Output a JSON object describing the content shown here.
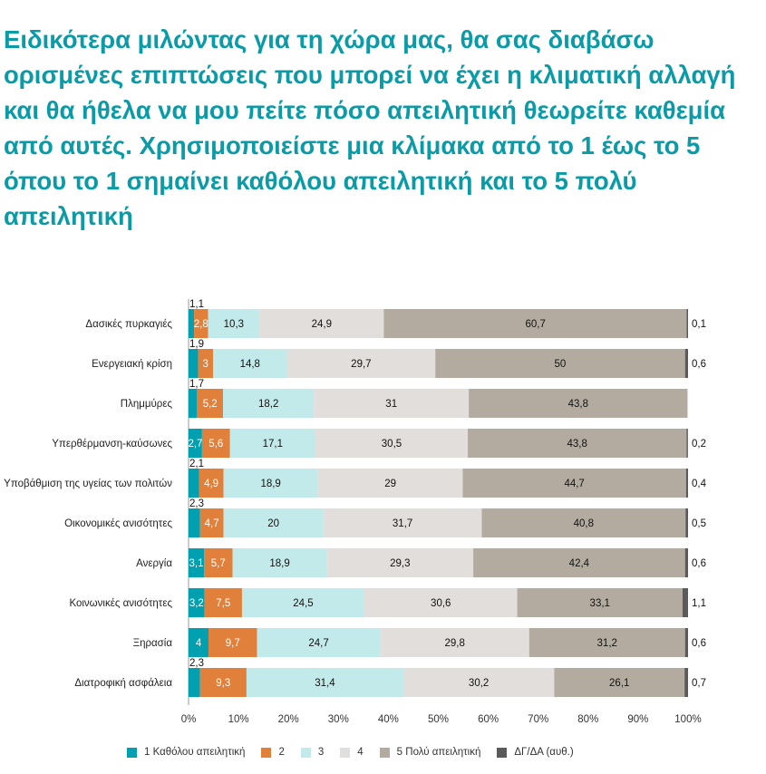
{
  "title": "Ειδικότερα μιλώντας για τη χώρα μας, θα σας διαβάσω ορισμένες επιπτώσεις που μπορεί να έχει η κλιματική αλλαγή και θα ήθελα να μου πείτε πόσο απειλητική θεωρείτε καθεμία από αυτές. Χρησιμοποιείστε μια κλίμακα από το 1 έως το 5 όπου το 1 σημαίνει καθόλου απειλητική και το 5 πολύ απειλητική",
  "chart_data": {
    "type": "bar",
    "orientation": "horizontal",
    "stacked": true,
    "xlim": [
      0,
      100
    ],
    "xticks": [
      "0%",
      "10%",
      "20%",
      "30%",
      "40%",
      "50%",
      "60%",
      "70%",
      "80%",
      "90%",
      "100%"
    ],
    "legend_position": "bottom",
    "categories": [
      "Δασικές πυρκαγιές",
      "Ενεργειακή κρίση",
      "Πλημμύρες",
      "Υπερθέρμανση-καύσωνες",
      "Υποβάθμιση της υγείας των πολιτών",
      "Οικονομικές ανισότητες",
      "Ανεργία",
      "Κοινωνικές ανισότητες",
      "Ξηρασία",
      "Διατροφική ασφάλεια"
    ],
    "series": [
      {
        "name": "1 Καθόλου απειλητική",
        "color": "#00a0b0",
        "label_color": "#ffffff",
        "values": [
          1.1,
          1.9,
          1.7,
          2.7,
          2.1,
          2.3,
          3.1,
          3.2,
          4,
          2.3
        ]
      },
      {
        "name": "2",
        "color": "#e0803a",
        "label_color": "#ffffff",
        "values": [
          2.8,
          3,
          5.2,
          5.6,
          4.9,
          4.7,
          5.7,
          7.5,
          9.7,
          9.3
        ]
      },
      {
        "name": "3",
        "color": "#c3eaea",
        "label_color": "#111111",
        "values": [
          10.3,
          14.8,
          18.2,
          17.1,
          18.9,
          20,
          18.9,
          24.5,
          24.7,
          31.4
        ]
      },
      {
        "name": "4",
        "color": "#e2dedb",
        "label_color": "#111111",
        "values": [
          24.9,
          29.7,
          31,
          30.5,
          29,
          31.7,
          29.3,
          30.6,
          29.8,
          30.2
        ]
      },
      {
        "name": "5 Πολύ απειλητική",
        "color": "#b3aba0",
        "label_color": "#111111",
        "values": [
          60.7,
          50,
          43.8,
          43.8,
          44.7,
          40.8,
          42.4,
          33.1,
          31.2,
          26.1
        ]
      },
      {
        "name": "ΔΓ/ΔΑ (αυθ.)",
        "color": "#5a5a5a",
        "label_color": "#111111",
        "values": [
          0.1,
          0.6,
          null,
          0.2,
          0.4,
          0.5,
          0.6,
          1.1,
          0.6,
          0.7
        ]
      }
    ]
  }
}
